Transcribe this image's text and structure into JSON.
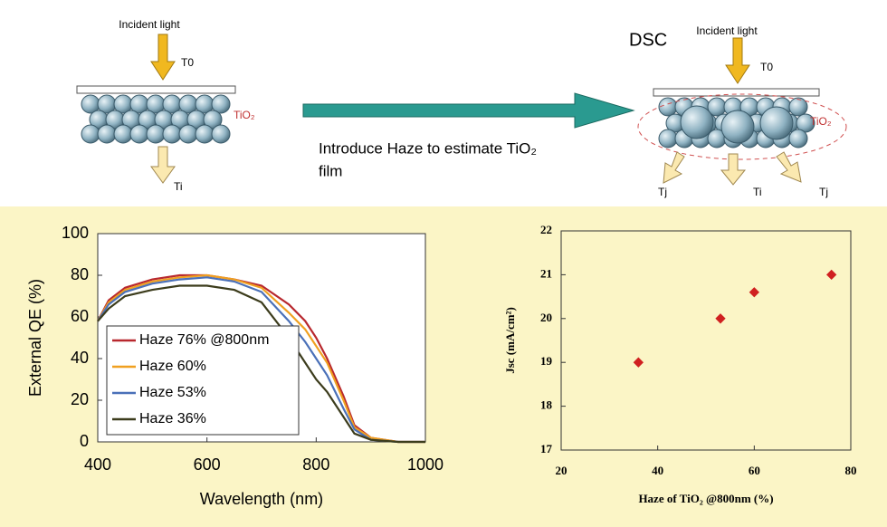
{
  "diagram": {
    "left": {
      "incident": "Incident light",
      "t0": "T0",
      "film": "TiO₂",
      "ti": "Ti"
    },
    "arrow_text": [
      "Introduce Haze to estimate TiO₂",
      "film"
    ],
    "right": {
      "title": "DSC",
      "incident": "Incident light",
      "t0": "T0",
      "film": "TiO₂",
      "tj_left": "Tj",
      "ti": "Ti",
      "tj_right": "Tj"
    }
  },
  "chart_data": [
    {
      "type": "line",
      "xlabel": "Wavelength (nm)",
      "ylabel": "External QE (%)",
      "x": [
        400,
        420,
        450,
        500,
        550,
        600,
        650,
        700,
        750,
        780,
        800,
        820,
        850,
        870,
        900,
        950,
        1000
      ],
      "series": [
        {
          "name": "Haze 76% @800nm",
          "color": "#b8282e",
          "values": [
            58,
            68,
            74,
            78,
            80,
            80,
            78,
            75,
            66,
            58,
            50,
            40,
            22,
            8,
            2,
            0,
            0
          ]
        },
        {
          "name": "Haze 60%",
          "color": "#f0a020",
          "values": [
            58,
            67,
            73,
            77,
            79,
            80,
            78,
            74,
            62,
            54,
            46,
            38,
            20,
            7,
            2,
            0,
            0
          ]
        },
        {
          "name": "Haze 53%",
          "color": "#4a70b8",
          "values": [
            58,
            66,
            72,
            76,
            78,
            79,
            77,
            72,
            58,
            48,
            40,
            32,
            16,
            6,
            1,
            0,
            0
          ]
        },
        {
          "name": "Haze 36%",
          "color": "#3c3c1c",
          "values": [
            58,
            64,
            70,
            73,
            75,
            75,
            73,
            67,
            50,
            38,
            30,
            24,
            12,
            4,
            1,
            0,
            0
          ]
        }
      ],
      "xlim": [
        400,
        1000
      ],
      "xticks": [
        400,
        600,
        800,
        1000
      ],
      "ylim": [
        0,
        100
      ],
      "yticks": [
        0,
        20,
        40,
        60,
        80,
        100
      ],
      "legend": "lower left"
    },
    {
      "type": "scatter",
      "xlabel": "Haze of TiO₂ @800nm (%)",
      "ylabel": "Jsc (mA/cm²)",
      "x": [
        36,
        53,
        60,
        76
      ],
      "values": [
        19,
        20,
        20.6,
        21
      ],
      "color": "#d02020",
      "xlim": [
        20,
        80
      ],
      "xticks": [
        20,
        40,
        60,
        80
      ],
      "ylim": [
        17,
        22
      ],
      "yticks": [
        17,
        18,
        19,
        20,
        21,
        22
      ]
    }
  ]
}
